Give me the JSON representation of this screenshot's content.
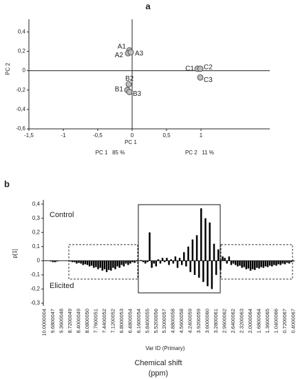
{
  "chart_data": [
    {
      "type": "scatter",
      "panel": "a",
      "x_label": "PC 1",
      "y_label": "PC 2",
      "annotations": [
        "PC 1   85 %",
        "PC 2   11 %"
      ],
      "points": [
        {
          "label": "A1",
          "x": -0.04,
          "y": 0.21
        },
        {
          "label": "A2",
          "x": -0.06,
          "y": 0.18
        },
        {
          "label": "A3",
          "x": -0.02,
          "y": 0.19
        },
        {
          "label": "B2",
          "x": -0.05,
          "y": -0.14
        },
        {
          "label": "B1",
          "x": -0.07,
          "y": -0.2
        },
        {
          "label": "B3",
          "x": -0.04,
          "y": -0.22
        },
        {
          "label": "C1",
          "x": 0.95,
          "y": 0.02
        },
        {
          "label": "C2",
          "x": 0.99,
          "y": 0.02
        },
        {
          "label": "C3",
          "x": 0.99,
          "y": -0.07
        }
      ],
      "color": "#bdbdbd",
      "xlim": [
        -1.5,
        2
      ],
      "ylim": [
        -0.6,
        0.53
      ],
      "xticks": [
        {
          "value": -1.5,
          "label": "-1,5"
        },
        -1,
        {
          "value": -0.5,
          "label": "-0,5"
        },
        0,
        {
          "value": 0.5,
          "label": "0,5"
        },
        1
      ],
      "yticks": [
        {
          "value": -0.6,
          "label": "-0,6"
        },
        {
          "value": -0.4,
          "label": "-0,4"
        },
        {
          "value": -0.2,
          "label": "-0,2"
        },
        0,
        {
          "value": 0.2,
          "label": "0,2"
        },
        {
          "value": 0.4,
          "label": "0,4"
        }
      ]
    },
    {
      "type": "bar",
      "panel": "b",
      "y_label": "p[1]",
      "x_label": "Var ID (Primary)",
      "x_title": [
        "Chemical shift",
        "(ppm)"
      ],
      "annotations": [
        "Control",
        "Elicited"
      ],
      "color": "#000000",
      "ylim": [
        -0.3,
        0.43
      ],
      "yticks": [
        {
          "value": -0.3,
          "label": "-0,3"
        },
        {
          "value": -0.2,
          "label": "-0,2"
        },
        {
          "value": -0.1,
          "label": "-0,1"
        },
        0,
        {
          "value": 0.1,
          "label": "0,1"
        },
        {
          "value": 0.2,
          "label": "0,2"
        },
        {
          "value": 0.3,
          "label": "0,3"
        },
        {
          "value": 0.4,
          "label": "0,4"
        }
      ],
      "categories": [
        "10.0000004",
        null,
        null,
        null,
        "9.6800047",
        null,
        null,
        null,
        "9.3600048",
        null,
        null,
        null,
        "8.7200049",
        null,
        null,
        null,
        "8.4000049",
        null,
        null,
        null,
        "8.0800050",
        null,
        null,
        null,
        "7.7600051",
        null,
        null,
        null,
        "7.4400052",
        null,
        null,
        null,
        "7.1200052",
        null,
        null,
        null,
        "6.8000053",
        null,
        null,
        null,
        "6.4800054",
        null,
        null,
        null,
        "6.1600054",
        null,
        null,
        null,
        "5.8400055",
        null,
        null,
        null,
        "5.5200056",
        null,
        null,
        null,
        "5.2000057",
        null,
        null,
        null,
        "4.8800058",
        null,
        null,
        null,
        "4.5600058",
        null,
        null,
        null,
        "4.2400059",
        null,
        null,
        null,
        "3.9200059",
        null,
        null,
        null,
        "3.6000060",
        null,
        null,
        null,
        "3.2800061",
        null,
        null,
        null,
        "2.9600062",
        null,
        null,
        null,
        "2.6400062",
        null,
        null,
        null,
        "2.3200063",
        null,
        null,
        null,
        "2.0000064",
        null,
        null,
        null,
        "1.6800064",
        null,
        null,
        null,
        "1.3600065",
        null,
        null,
        null,
        "1.0400066",
        null,
        null,
        null,
        "0.7200067",
        null,
        null,
        null,
        "0.4000067"
      ],
      "values": [
        0,
        0,
        0,
        -0.005,
        -0.01,
        -0.01,
        -0.005,
        0,
        0,
        0,
        0,
        0,
        -0.005,
        -0.01,
        -0.01,
        -0.02,
        -0.015,
        -0.02,
        -0.03,
        -0.025,
        -0.03,
        -0.04,
        -0.035,
        -0.05,
        -0.045,
        -0.06,
        -0.05,
        -0.07,
        -0.06,
        -0.08,
        -0.065,
        -0.07,
        -0.05,
        -0.06,
        -0.04,
        -0.05,
        -0.03,
        -0.04,
        -0.02,
        -0.03,
        -0.02,
        -0.01,
        -0.015,
        -0.005,
        0,
        0.005,
        -0.01,
        -0.02,
        -0.01,
        0.2,
        -0.05,
        -0.02,
        -0.04,
        0.01,
        -0.02,
        0.02,
        -0.01,
        0.02,
        -0.03,
        0.01,
        -0.02,
        0.03,
        -0.05,
        0.02,
        -0.03,
        0.06,
        -0.04,
        0.1,
        -0.08,
        0.15,
        -0.1,
        0.18,
        -0.12,
        0.37,
        -0.15,
        0.3,
        -0.18,
        0.27,
        -0.2,
        0.12,
        -0.1,
        0.08,
        -0.06,
        0.03,
        0.02,
        -0.02,
        0.03,
        -0.03,
        -0.02,
        -0.03,
        -0.04,
        -0.035,
        -0.05,
        -0.045,
        -0.06,
        -0.055,
        -0.07,
        -0.06,
        -0.065,
        -0.05,
        -0.055,
        -0.045,
        -0.05,
        -0.04,
        -0.045,
        -0.035,
        -0.04,
        -0.03,
        -0.035,
        -0.025,
        -0.03,
        -0.02,
        -0.025,
        -0.015,
        -0.02,
        -0.01,
        -0.005
      ]
    }
  ]
}
